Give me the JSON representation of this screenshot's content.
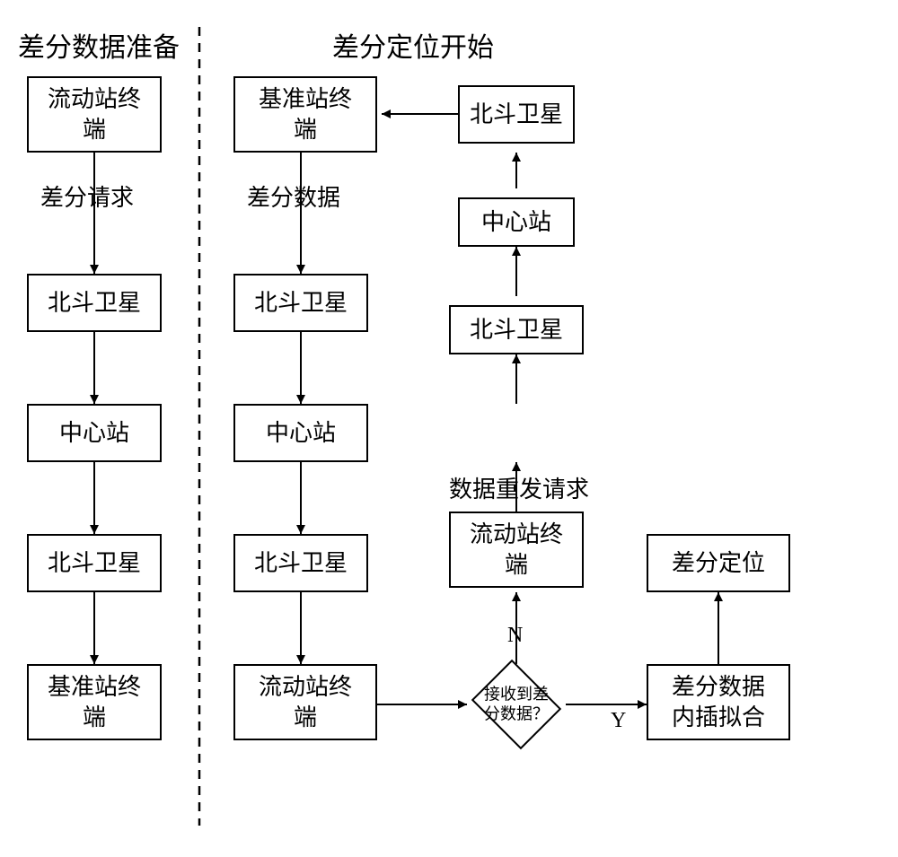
{
  "titles": {
    "left": "差分数据准备",
    "right": "差分定位开始"
  },
  "left_col": {
    "b1": "流动站终\n端",
    "b2": "北斗卫星",
    "b3": "中心站",
    "b4": "北斗卫星",
    "b5": "基准站终\n端",
    "edge_label": "差分请求"
  },
  "mid_col": {
    "b1": "基准站终\n端",
    "b2": "北斗卫星",
    "b3": "中心站",
    "b4": "北斗卫星",
    "b5": "流动站终\n端",
    "edge_label": "差分数据"
  },
  "right_loop": {
    "top": "北斗卫星",
    "r2": "中心站",
    "r3": "北斗卫星",
    "r4": "流动站终\n端",
    "edge_label": "数据重发请求"
  },
  "decision": {
    "text": "接收到差\n分数据？",
    "no": "N",
    "yes": "Y"
  },
  "out": {
    "fit": "差分数据\n内插拟合",
    "result": "差分定位"
  },
  "style": {
    "box_border": "#000000",
    "bg": "#ffffff",
    "font_title": 30,
    "font_box": 26,
    "font_diamond": 18,
    "font_small": 24,
    "stroke_width": 2
  }
}
